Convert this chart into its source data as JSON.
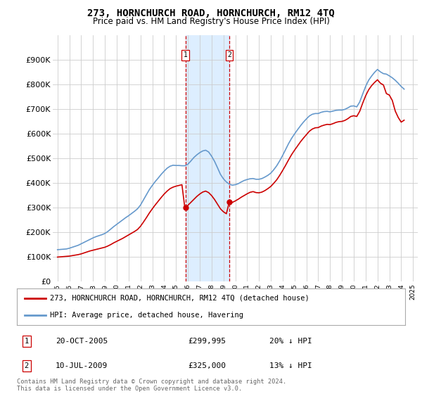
{
  "title": "273, HORNCHURCH ROAD, HORNCHURCH, RM12 4TQ",
  "subtitle": "Price paid vs. HM Land Registry's House Price Index (HPI)",
  "ylabel_ticks": [
    "£0",
    "£100K",
    "£200K",
    "£300K",
    "£400K",
    "£500K",
    "£600K",
    "£700K",
    "£800K",
    "£900K"
  ],
  "ylim": [
    0,
    1000000
  ],
  "yticks": [
    0,
    100000,
    200000,
    300000,
    400000,
    500000,
    600000,
    700000,
    800000,
    900000
  ],
  "transaction1": {
    "date_label": "20-OCT-2005",
    "price": 299995,
    "year": 2005.8,
    "label": "1",
    "pct": "20% ↓ HPI"
  },
  "transaction2": {
    "date_label": "10-JUL-2009",
    "price": 325000,
    "year": 2009.5,
    "label": "2",
    "pct": "13% ↓ HPI"
  },
  "highlight_color": "#ddeeff",
  "dashed_color": "#cc0000",
  "legend_line1": "273, HORNCHURCH ROAD, HORNCHURCH, RM12 4TQ (detached house)",
  "legend_line2": "HPI: Average price, detached house, Havering",
  "footer": "Contains HM Land Registry data © Crown copyright and database right 2024.\nThis data is licensed under the Open Government Licence v3.0.",
  "hpi_color": "#6699cc",
  "price_color": "#cc0000",
  "hpi_data": {
    "years": [
      1995,
      1995.25,
      1995.5,
      1995.75,
      1996,
      1996.25,
      1996.5,
      1996.75,
      1997,
      1997.25,
      1997.5,
      1997.75,
      1998,
      1998.25,
      1998.5,
      1998.75,
      1999,
      1999.25,
      1999.5,
      1999.75,
      2000,
      2000.25,
      2000.5,
      2000.75,
      2001,
      2001.25,
      2001.5,
      2001.75,
      2002,
      2002.25,
      2002.5,
      2002.75,
      2003,
      2003.25,
      2003.5,
      2003.75,
      2004,
      2004.25,
      2004.5,
      2004.75,
      2005,
      2005.25,
      2005.5,
      2005.75,
      2006,
      2006.25,
      2006.5,
      2006.75,
      2007,
      2007.25,
      2007.5,
      2007.75,
      2008,
      2008.25,
      2008.5,
      2008.75,
      2009,
      2009.25,
      2009.5,
      2009.75,
      2010,
      2010.25,
      2010.5,
      2010.75,
      2011,
      2011.25,
      2011.5,
      2011.75,
      2012,
      2012.25,
      2012.5,
      2012.75,
      2013,
      2013.25,
      2013.5,
      2013.75,
      2014,
      2014.25,
      2014.5,
      2014.75,
      2015,
      2015.25,
      2015.5,
      2015.75,
      2016,
      2016.25,
      2016.5,
      2016.75,
      2017,
      2017.25,
      2017.5,
      2017.75,
      2018,
      2018.25,
      2018.5,
      2018.75,
      2019,
      2019.25,
      2019.5,
      2019.75,
      2020,
      2020.25,
      2020.5,
      2020.75,
      2021,
      2021.25,
      2021.5,
      2021.75,
      2022,
      2022.25,
      2022.5,
      2022.75,
      2023,
      2023.25,
      2023.5,
      2023.75,
      2024,
      2024.25
    ],
    "values": [
      130000,
      131000,
      132000,
      133000,
      136000,
      140000,
      144000,
      148000,
      154000,
      160000,
      166000,
      172000,
      178000,
      183000,
      187000,
      191000,
      196000,
      204000,
      214000,
      224000,
      233000,
      242000,
      251000,
      260000,
      268000,
      277000,
      286000,
      296000,
      311000,
      332000,
      353000,
      374000,
      391000,
      407000,
      421000,
      436000,
      449000,
      461000,
      469000,
      473000,
      472000,
      472000,
      471000,
      471000,
      477000,
      490000,
      504000,
      515000,
      524000,
      531000,
      534000,
      527000,
      510000,
      489000,
      463000,
      436000,
      418000,
      405000,
      396000,
      392000,
      394000,
      398000,
      405000,
      411000,
      415000,
      418000,
      419000,
      416000,
      416000,
      419000,
      425000,
      432000,
      441000,
      455000,
      471000,
      491000,
      513000,
      537000,
      561000,
      582000,
      600000,
      617000,
      633000,
      648000,
      661000,
      673000,
      680000,
      683000,
      683000,
      688000,
      691000,
      692000,
      690000,
      693000,
      696000,
      697000,
      697000,
      700000,
      706000,
      713000,
      714000,
      710000,
      730000,
      762000,
      793000,
      818000,
      835000,
      850000,
      862000,
      852000,
      845000,
      843000,
      836000,
      828000,
      818000,
      806000,
      793000,
      782000
    ]
  },
  "price_data": {
    "years": [
      1995,
      1995.25,
      1995.5,
      1995.75,
      1996,
      1996.25,
      1996.5,
      1996.75,
      1997,
      1997.25,
      1997.5,
      1997.75,
      1998,
      1998.25,
      1998.5,
      1998.75,
      1999,
      1999.25,
      1999.5,
      1999.75,
      2000,
      2000.25,
      2000.5,
      2000.75,
      2001,
      2001.25,
      2001.5,
      2001.75,
      2002,
      2002.25,
      2002.5,
      2002.75,
      2003,
      2003.25,
      2003.5,
      2003.75,
      2004,
      2004.25,
      2004.5,
      2004.75,
      2005,
      2005.25,
      2005.5,
      2005.75,
      2006,
      2006.25,
      2006.5,
      2006.75,
      2007,
      2007.25,
      2007.5,
      2007.75,
      2008,
      2008.25,
      2008.5,
      2008.75,
      2009,
      2009.25,
      2009.5,
      2009.75,
      2010,
      2010.25,
      2010.5,
      2010.75,
      2011,
      2011.25,
      2011.5,
      2011.75,
      2012,
      2012.25,
      2012.5,
      2012.75,
      2013,
      2013.25,
      2013.5,
      2013.75,
      2014,
      2014.25,
      2014.5,
      2014.75,
      2015,
      2015.25,
      2015.5,
      2015.75,
      2016,
      2016.25,
      2016.5,
      2016.75,
      2017,
      2017.25,
      2017.5,
      2017.75,
      2018,
      2018.25,
      2018.5,
      2018.75,
      2019,
      2019.25,
      2019.5,
      2019.75,
      2020,
      2020.25,
      2020.5,
      2020.75,
      2021,
      2021.25,
      2021.5,
      2021.75,
      2022,
      2022.25,
      2022.5,
      2022.75,
      2023,
      2023.25,
      2023.5,
      2023.75,
      2024,
      2024.25
    ],
    "values": [
      100000,
      101000,
      102000,
      103000,
      104000,
      106000,
      108000,
      110000,
      113000,
      117000,
      121000,
      125000,
      128000,
      131000,
      134000,
      137000,
      140000,
      145000,
      151000,
      158000,
      164000,
      170000,
      176000,
      183000,
      190000,
      197000,
      204000,
      212000,
      225000,
      242000,
      260000,
      279000,
      296000,
      312000,
      327000,
      342000,
      356000,
      368000,
      378000,
      384000,
      388000,
      391000,
      394000,
      298000,
      310000,
      322000,
      334000,
      346000,
      356000,
      364000,
      368000,
      362000,
      350000,
      334000,
      315000,
      296000,
      284000,
      276000,
      325000,
      322000,
      328000,
      335000,
      343000,
      350000,
      357000,
      363000,
      366000,
      362000,
      361000,
      364000,
      370000,
      378000,
      387000,
      400000,
      414000,
      432000,
      452000,
      473000,
      495000,
      516000,
      534000,
      551000,
      568000,
      583000,
      597000,
      611000,
      620000,
      625000,
      626000,
      632000,
      636000,
      639000,
      638000,
      642000,
      647000,
      650000,
      651000,
      655000,
      662000,
      671000,
      674000,
      671000,
      692000,
      725000,
      755000,
      779000,
      796000,
      809000,
      820000,
      806000,
      799000,
      764000,
      758000,
      736000,
      693000,
      667000,
      648000,
      656000
    ]
  }
}
